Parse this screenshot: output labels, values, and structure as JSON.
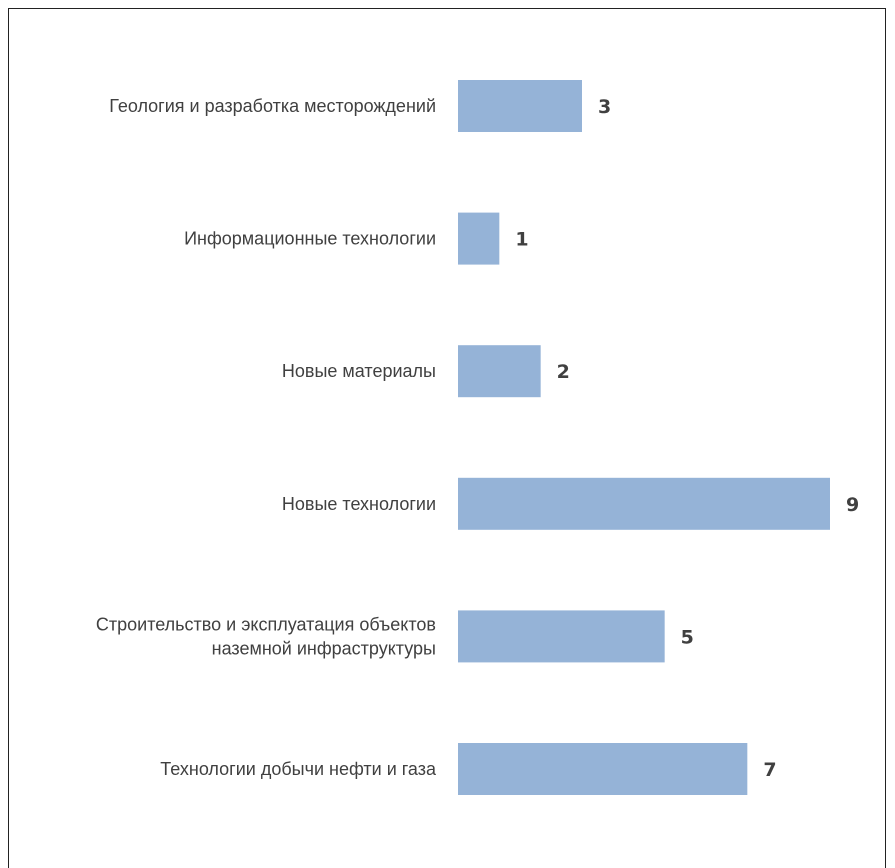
{
  "chart_data": {
    "type": "bar",
    "orientation": "horizontal",
    "categories": [
      [
        "Геология и разработка месторождений"
      ],
      [
        "Информационные технологии"
      ],
      [
        "Новые материалы"
      ],
      [
        "Новые технологии"
      ],
      [
        "Строительство и эксплуатация объектов",
        "наземной инфраструктуры"
      ],
      [
        "Технологии добычи нефти и газа"
      ]
    ],
    "values": [
      3,
      1,
      2,
      9,
      5,
      7
    ],
    "data_labels": [
      "3",
      "1",
      "2",
      "9",
      "5",
      "7"
    ],
    "bar_color": "#95B3D7",
    "xlim": [
      0,
      9
    ],
    "grid": false,
    "legend": "none",
    "title": "",
    "xlabel": "",
    "ylabel": ""
  }
}
